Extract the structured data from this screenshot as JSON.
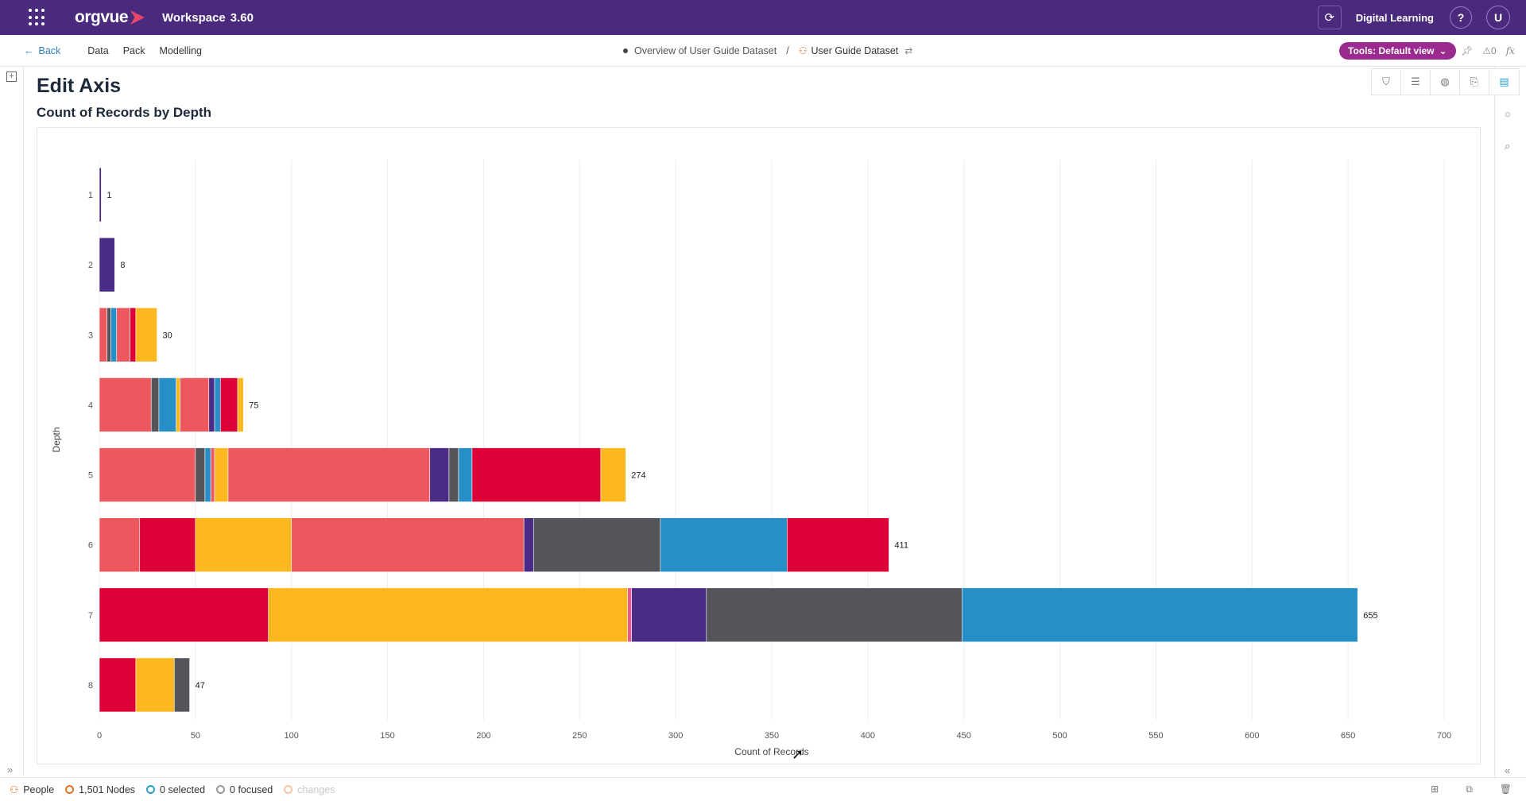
{
  "topbar": {
    "logo_text": "orgvue",
    "workspace_label": "Workspace",
    "version": "3.60",
    "org_name": "Digital Learning",
    "help_label": "?",
    "avatar_initial": "U"
  },
  "subnav": {
    "back_label": "Back",
    "links": [
      "Data",
      "Pack",
      "Modelling"
    ],
    "breadcrumb_parent": "Overview of User Guide Dataset",
    "breadcrumb_sep": "/",
    "breadcrumb_current": "User Guide Dataset",
    "tools_label": "Tools: Default view",
    "count_label": "0",
    "fx_label": "fx"
  },
  "page": {
    "title": "Edit Axis",
    "chart_title": "Count of Records by Depth"
  },
  "chart_data": {
    "type": "bar",
    "orientation": "horizontal",
    "stacked": true,
    "title": "Count of Records by Depth",
    "xlabel": "Count of Records",
    "ylabel": "Depth",
    "xlim": [
      0,
      700
    ],
    "xticks": [
      0,
      50,
      100,
      150,
      200,
      250,
      300,
      350,
      400,
      450,
      500,
      550,
      600,
      650,
      700
    ],
    "grid": true,
    "legend": "none",
    "colors": {
      "coral": "#ec585e",
      "crimson": "#dc0036",
      "amber": "#fdb71f",
      "purple": "#4a2b85",
      "slate": "#54555a",
      "blue": "#268fc7",
      "pink": "#e85a8e"
    },
    "categories": [
      "1",
      "2",
      "3",
      "4",
      "5",
      "6",
      "7",
      "8"
    ],
    "totals": [
      1,
      8,
      30,
      75,
      274,
      411,
      655,
      47
    ],
    "segments": [
      [
        {
          "c": "purple",
          "v": 1
        }
      ],
      [
        {
          "c": "purple",
          "v": 8
        }
      ],
      [
        {
          "c": "coral",
          "v": 4
        },
        {
          "c": "slate",
          "v": 2
        },
        {
          "c": "blue",
          "v": 3
        },
        {
          "c": "coral",
          "v": 7
        },
        {
          "c": "crimson",
          "v": 3
        },
        {
          "c": "amber",
          "v": 11
        }
      ],
      [
        {
          "c": "coral",
          "v": 27
        },
        {
          "c": "slate",
          "v": 4
        },
        {
          "c": "blue",
          "v": 9
        },
        {
          "c": "amber",
          "v": 2
        },
        {
          "c": "coral",
          "v": 15
        },
        {
          "c": "purple",
          "v": 3
        },
        {
          "c": "blue",
          "v": 3
        },
        {
          "c": "crimson",
          "v": 9
        },
        {
          "c": "amber",
          "v": 3
        }
      ],
      [
        {
          "c": "coral",
          "v": 50
        },
        {
          "c": "slate",
          "v": 5
        },
        {
          "c": "blue",
          "v": 3
        },
        {
          "c": "coral",
          "v": 2
        },
        {
          "c": "amber",
          "v": 7
        },
        {
          "c": "coral",
          "v": 105
        },
        {
          "c": "purple",
          "v": 10
        },
        {
          "c": "slate",
          "v": 5
        },
        {
          "c": "blue",
          "v": 7
        },
        {
          "c": "crimson",
          "v": 67
        },
        {
          "c": "amber",
          "v": 13
        }
      ],
      [
        {
          "c": "coral",
          "v": 21
        },
        {
          "c": "crimson",
          "v": 29
        },
        {
          "c": "amber",
          "v": 50
        },
        {
          "c": "coral",
          "v": 121
        },
        {
          "c": "purple",
          "v": 5
        },
        {
          "c": "slate",
          "v": 66
        },
        {
          "c": "blue",
          "v": 66
        },
        {
          "c": "crimson",
          "v": 53
        }
      ],
      [
        {
          "c": "crimson",
          "v": 88
        },
        {
          "c": "amber",
          "v": 187
        },
        {
          "c": "pink",
          "v": 2
        },
        {
          "c": "purple",
          "v": 39
        },
        {
          "c": "slate",
          "v": 133
        },
        {
          "c": "blue",
          "v": 206
        }
      ],
      [
        {
          "c": "crimson",
          "v": 19
        },
        {
          "c": "amber",
          "v": 20
        },
        {
          "c": "slate",
          "v": 8
        }
      ]
    ]
  },
  "statusbar": {
    "people_label": "People",
    "nodes_label": "1,501 Nodes",
    "selected_label": "0 selected",
    "focused_label": "0 focused",
    "changes_label": "changes"
  }
}
